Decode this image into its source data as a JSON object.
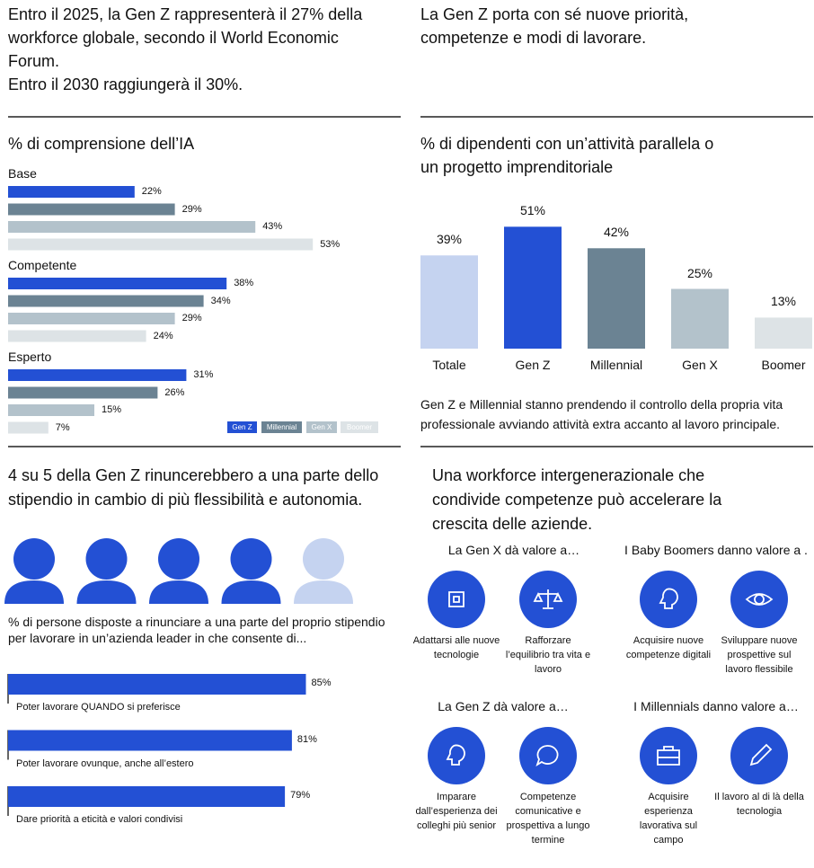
{
  "headline_left": [
    "Entro il 2025, la Gen Z rappresenterà il 27% della workforce globale, secondo il World Economic Forum.",
    "Entro il 2030 raggiungerà il 30%."
  ],
  "headline_right": "La Gen Z porta con sé nuove priorità, competenze e modi di lavorare.",
  "chart_data": [
    {
      "type": "hbar-grouped",
      "title": "% di comprensione dell’IA",
      "categories": [
        "Base",
        "Competente",
        "Esperto"
      ],
      "series": [
        {
          "name": "Gen Z",
          "color": "#2350d4",
          "values": [
            22,
            38,
            31
          ],
          "value_labels": [
            "22%",
            "38%",
            "31%"
          ]
        },
        {
          "name": "Millennial",
          "color": "#6b8393",
          "values": [
            29,
            34,
            26
          ],
          "value_labels": [
            "29%",
            "34%",
            "26%"
          ]
        },
        {
          "name": "Gen X",
          "color": "#b3c2cb",
          "values": [
            43,
            29,
            15
          ],
          "value_labels": [
            "43%",
            "29%",
            "15%"
          ]
        },
        {
          "name": "Boomer",
          "color": "#dde3e6",
          "values": [
            53,
            24,
            7
          ],
          "value_labels": [
            "53%",
            "24%",
            "7%"
          ]
        }
      ],
      "legend": "lower right"
    },
    {
      "type": "bar",
      "title": "% di dipendenti con un’attività parallela o un progetto imprenditoriale",
      "categories": [
        "Totale",
        "Gen Z",
        "Millennial",
        "Gen X",
        "Boomer"
      ],
      "values": [
        39,
        51,
        42,
        25,
        13
      ],
      "value_labels": [
        "39%",
        "51%",
        "42%",
        "25%",
        "13%"
      ],
      "colors": [
        "#c5d3f0",
        "#2350d4",
        "#6b8393",
        "#b3c2cb",
        "#dde3e6"
      ],
      "note": "Gen Z e Millennial stanno prendendo il controllo della propria vita professionale avviando attività extra accanto al lavoro principale."
    },
    {
      "type": "pictogram",
      "title": "4 su 5 della Gen Z rinuncerebbero a una parte dello stipendio in cambio di più flessibilità e autonomia.",
      "value": 4,
      "total": 5,
      "color": "#2350d4",
      "empty_color": "#c5d3f0"
    },
    {
      "type": "hbar",
      "title": "% di persone disposte a rinunciare a una parte del proprio stipendio per lavorare in un’azienda leader in che consente di...",
      "categories": [
        "Poter lavorare QUANDO si preferisce",
        "Poter lavorare ovunque, anche all’estero",
        "Dare priorità a eticità e valori condivisi"
      ],
      "values": [
        85,
        81,
        79
      ],
      "value_labels": [
        "85%",
        "81%",
        "79%"
      ],
      "color": "#2350d4"
    }
  ],
  "values_section": {
    "title": "Una workforce intergenerazionale che condivide competenze può accelerare la crescita delle aziende.",
    "groups": [
      {
        "title": "La Gen X dà valore a…",
        "items": [
          "Adattarsi alle nuove tecnologie",
          "Rafforzare l’equilibrio tra vita e lavoro"
        ]
      },
      {
        "title": "I Baby Boomers danno valore a .",
        "items": [
          "Acquisire nuove competenze digitali",
          "Sviluppare nuove prospettive sul lavoro flessibile"
        ]
      },
      {
        "title": "La Gen Z dà valore a…",
        "items": [
          "Imparare dall’esperienza dei colleghi più senior",
          "Competenze comunicative e prospettiva a lungo termine"
        ]
      },
      {
        "title": "I Millennials danno valore a…",
        "items": [
          "Acquisire esperienza lavorativa sul campo",
          "Il lavoro al di là della tecnologia"
        ]
      }
    ]
  }
}
